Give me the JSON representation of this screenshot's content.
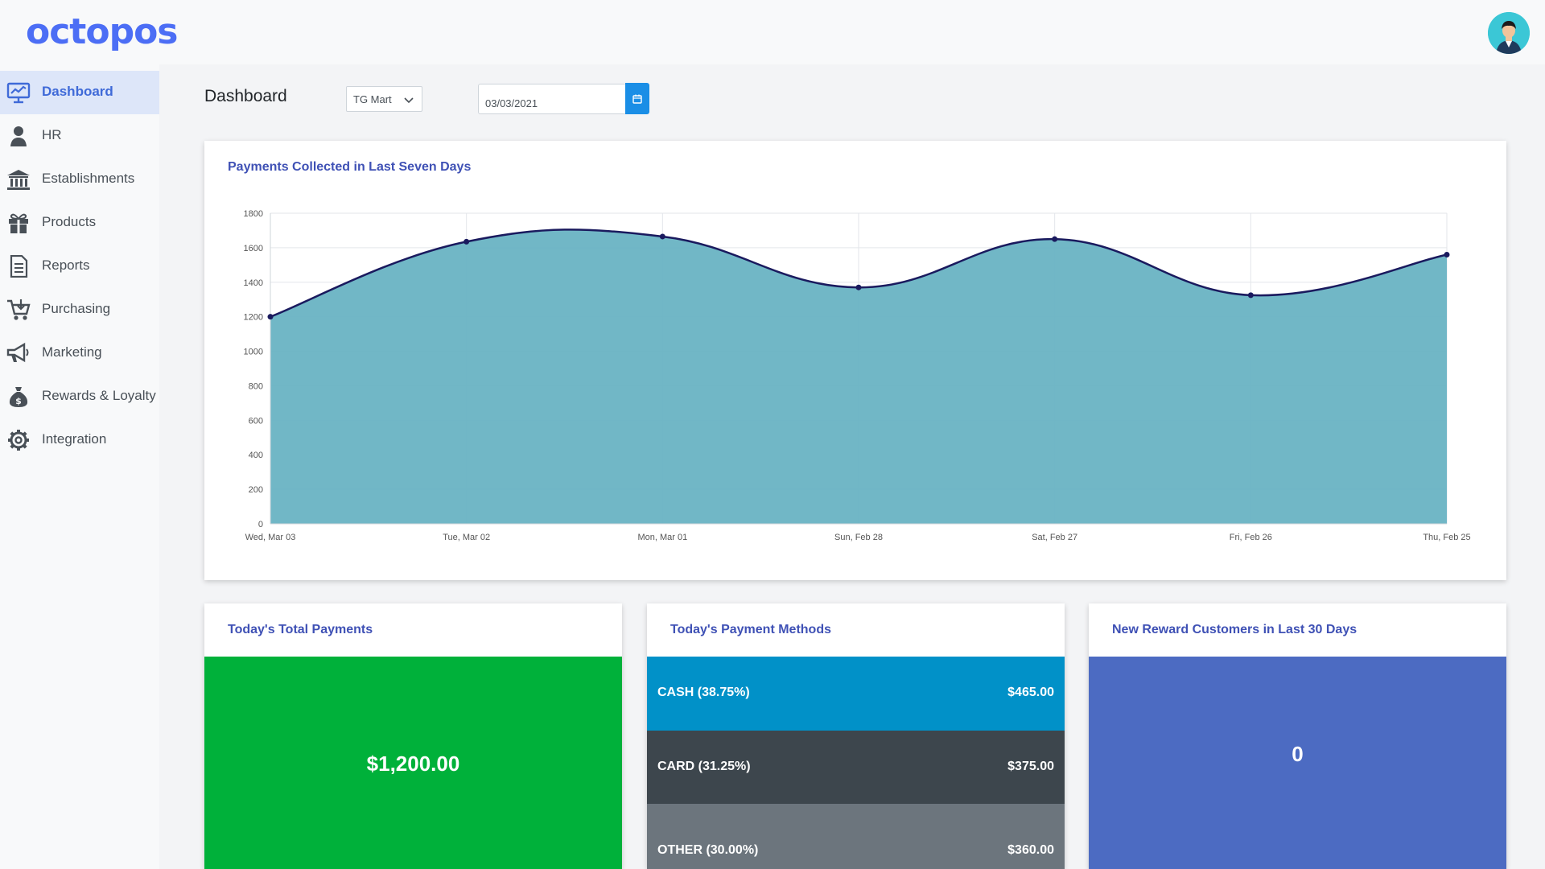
{
  "brand": {
    "logo_text": "octopos",
    "accent": "#3f6ad8"
  },
  "sidebar": {
    "items": [
      {
        "label": "Dashboard",
        "icon": "dashboard-chart-icon",
        "active": true
      },
      {
        "label": "HR",
        "icon": "user-icon",
        "active": false
      },
      {
        "label": "Establishments",
        "icon": "bank-icon",
        "active": false
      },
      {
        "label": "Products",
        "icon": "gift-icon",
        "active": false
      },
      {
        "label": "Reports",
        "icon": "document-icon",
        "active": false
      },
      {
        "label": "Purchasing",
        "icon": "cart-icon",
        "active": false
      },
      {
        "label": "Marketing",
        "icon": "megaphone-icon",
        "active": false
      },
      {
        "label": "Rewards & Loyalty",
        "icon": "money-bag-icon",
        "active": false
      },
      {
        "label": "Integration",
        "icon": "gear-icon",
        "active": false
      }
    ]
  },
  "header": {
    "title": "Dashboard",
    "store_select": "TG Mart",
    "date_value": "03/03/2021"
  },
  "payments_chart": {
    "title": "Payments Collected in Last Seven Days"
  },
  "chart_data": {
    "type": "area",
    "title": "Payments Collected in Last Seven Days",
    "x": [
      "Wed, Mar 03",
      "Tue, Mar 02",
      "Mon, Mar 01",
      "Sun, Feb 28",
      "Sat, Feb 27",
      "Fri, Feb 26",
      "Thu, Feb 25"
    ],
    "values": [
      1200,
      1635,
      1665,
      1370,
      1650,
      1325,
      1560
    ],
    "ylim": [
      0,
      1800
    ],
    "yticks": [
      0,
      200,
      400,
      600,
      800,
      1000,
      1200,
      1400,
      1600,
      1800
    ],
    "grid": true,
    "fill_color": "#69b3c3",
    "line_color": "#1a1a5e",
    "xlabel": "",
    "ylabel": ""
  },
  "total_payments": {
    "title": "Today's Total Payments",
    "value": "$1,200.00",
    "color": "#00b13a"
  },
  "payment_methods": {
    "title": "Today's Payment Methods",
    "rows": [
      {
        "label": "CASH (38.75%)",
        "amount": "$465.00",
        "color": "#0191c8"
      },
      {
        "label": "CARD (31.25%)",
        "amount": "$375.00",
        "color": "#3d464d"
      },
      {
        "label": "OTHER (30.00%)",
        "amount": "$360.00",
        "color": "#6c757d"
      }
    ]
  },
  "reward_customers": {
    "title": "New Reward Customers in Last 30 Days",
    "value": "0",
    "color": "#4c6bc2"
  }
}
